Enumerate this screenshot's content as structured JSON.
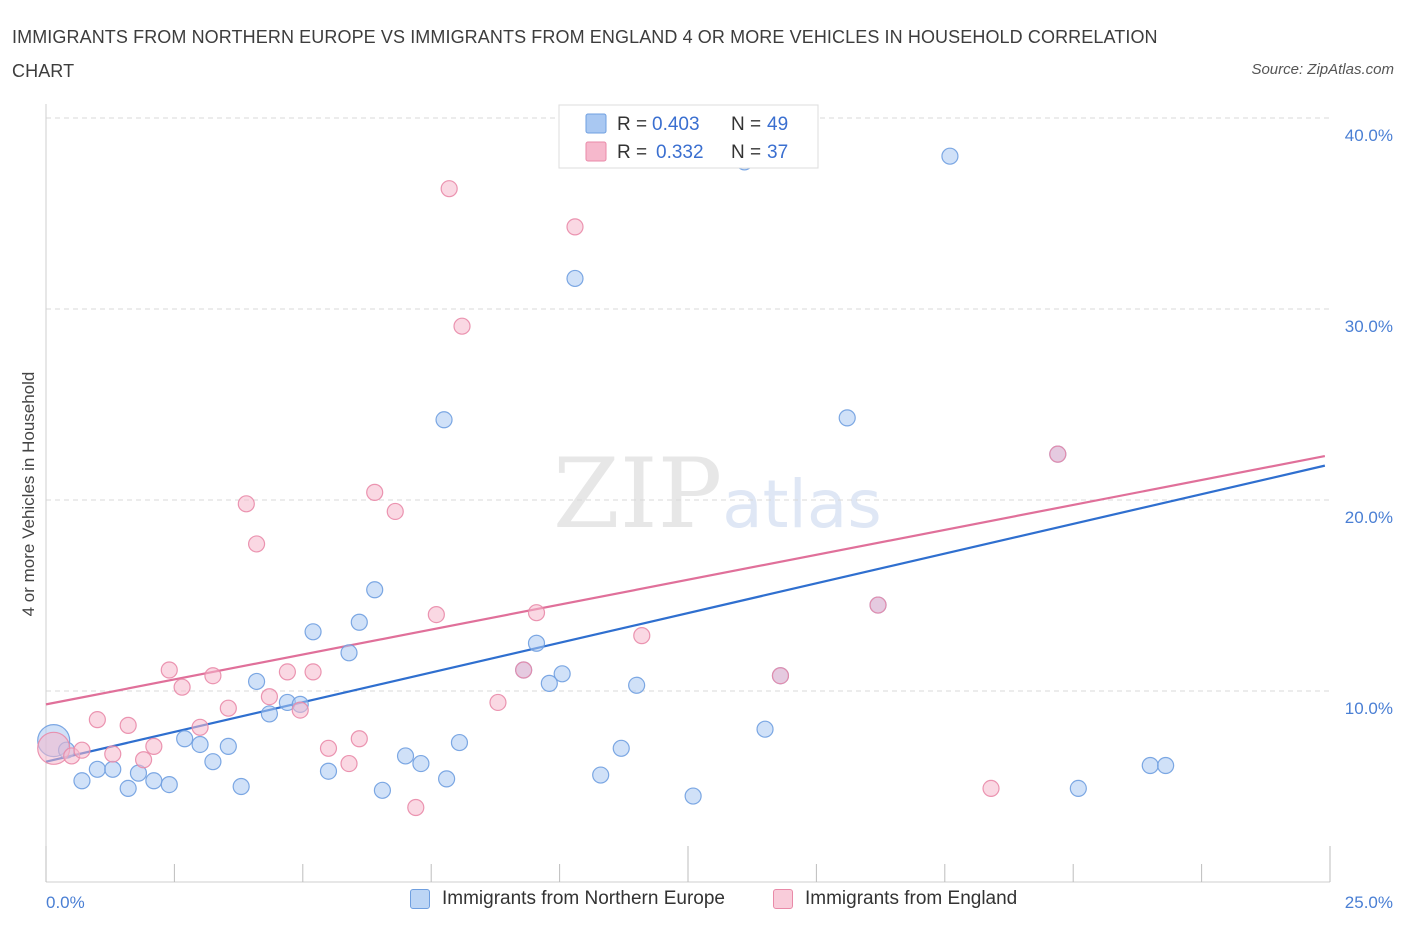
{
  "title": "IMMIGRANTS FROM NORTHERN EUROPE VS IMMIGRANTS FROM ENGLAND 4 OR MORE VEHICLES IN HOUSEHOLD CORRELATION CHART",
  "source": "Source: ZipAtlas.com",
  "watermark": {
    "zip": "ZIP",
    "atlas": "atlas"
  },
  "legend_top": [
    {
      "r_label": "R =",
      "r_value": "0.403",
      "n_label": "N =",
      "n_value": "49"
    },
    {
      "r_label": "R =",
      "r_value": "0.332",
      "n_label": "N =",
      "n_value": "37"
    }
  ],
  "legend_bottom": [
    "Immigrants from Northern Europe",
    "Immigrants from England"
  ],
  "colors": {
    "blue_fill": "#a9c8f2",
    "blue_stroke": "#6f9fe0",
    "blue_line": "#2f6fcf",
    "pink_fill": "#f6b8cc",
    "pink_stroke": "#e98aa8",
    "pink_line": "#e0709a",
    "tick_text": "#4a7fd4",
    "grid": "#d9d9d9"
  },
  "chart_data": {
    "type": "scatter",
    "title": "IMMIGRANTS FROM NORTHERN EUROPE VS IMMIGRANTS FROM ENGLAND 4 OR MORE VEHICLES IN HOUSEHOLD CORRELATION CHART",
    "xlabel": "",
    "ylabel": "4 or more Vehicles in Household",
    "xlim": [
      0,
      25
    ],
    "ylim": [
      0,
      40
    ],
    "x_tick_labels": [
      "0.0%",
      "25.0%"
    ],
    "y_ticks": [
      10,
      20,
      30,
      40
    ],
    "y_tick_labels": [
      "10.0%",
      "20.0%",
      "30.0%",
      "40.0%"
    ],
    "grid": true,
    "legend_position": "top-center",
    "series": [
      {
        "name": "Immigrants from Northern Europe",
        "color": "#a9c8f2",
        "trend": {
          "x": [
            0,
            24.9
          ],
          "y": [
            6.3,
            21.8
          ]
        },
        "points": [
          {
            "x": 0.15,
            "y": 7.4,
            "big": true
          },
          {
            "x": 0.4,
            "y": 6.9
          },
          {
            "x": 0.7,
            "y": 5.3
          },
          {
            "x": 1.0,
            "y": 5.9
          },
          {
            "x": 1.3,
            "y": 5.9
          },
          {
            "x": 1.6,
            "y": 4.9
          },
          {
            "x": 1.8,
            "y": 5.7
          },
          {
            "x": 2.1,
            "y": 5.3
          },
          {
            "x": 2.4,
            "y": 5.1
          },
          {
            "x": 2.7,
            "y": 7.5
          },
          {
            "x": 3.0,
            "y": 7.2
          },
          {
            "x": 3.25,
            "y": 6.3
          },
          {
            "x": 3.55,
            "y": 7.1
          },
          {
            "x": 3.8,
            "y": 5.0
          },
          {
            "x": 4.1,
            "y": 10.5
          },
          {
            "x": 4.35,
            "y": 8.8
          },
          {
            "x": 4.7,
            "y": 9.4
          },
          {
            "x": 4.95,
            "y": 9.3
          },
          {
            "x": 5.2,
            "y": 13.1
          },
          {
            "x": 5.5,
            "y": 5.8
          },
          {
            "x": 5.9,
            "y": 12.0
          },
          {
            "x": 6.1,
            "y": 13.6
          },
          {
            "x": 6.4,
            "y": 15.3
          },
          {
            "x": 6.55,
            "y": 4.8
          },
          {
            "x": 7.0,
            "y": 6.6
          },
          {
            "x": 7.3,
            "y": 6.2
          },
          {
            "x": 7.75,
            "y": 24.2
          },
          {
            "x": 7.8,
            "y": 5.4
          },
          {
            "x": 8.05,
            "y": 7.3
          },
          {
            "x": 9.3,
            "y": 11.1
          },
          {
            "x": 9.55,
            "y": 12.5
          },
          {
            "x": 9.8,
            "y": 10.4
          },
          {
            "x": 10.05,
            "y": 10.9
          },
          {
            "x": 10.3,
            "y": 31.6
          },
          {
            "x": 10.8,
            "y": 5.6
          },
          {
            "x": 11.2,
            "y": 7.0
          },
          {
            "x": 11.5,
            "y": 10.3
          },
          {
            "x": 12.2,
            "y": 40.0
          },
          {
            "x": 12.6,
            "y": 4.5
          },
          {
            "x": 13.6,
            "y": 37.7
          },
          {
            "x": 14.0,
            "y": 8.0
          },
          {
            "x": 14.3,
            "y": 10.8
          },
          {
            "x": 15.6,
            "y": 24.3
          },
          {
            "x": 16.2,
            "y": 14.5
          },
          {
            "x": 17.6,
            "y": 38.0
          },
          {
            "x": 19.7,
            "y": 22.4
          },
          {
            "x": 20.1,
            "y": 4.9
          },
          {
            "x": 21.5,
            "y": 6.1
          },
          {
            "x": 21.8,
            "y": 6.1
          }
        ]
      },
      {
        "name": "Immigrants from England",
        "color": "#f6b8cc",
        "trend": {
          "x": [
            0,
            24.9
          ],
          "y": [
            9.3,
            22.3
          ]
        },
        "points": [
          {
            "x": 0.15,
            "y": 7.0,
            "big": true
          },
          {
            "x": 0.5,
            "y": 6.6
          },
          {
            "x": 0.7,
            "y": 6.9
          },
          {
            "x": 1.0,
            "y": 8.5
          },
          {
            "x": 1.3,
            "y": 6.7
          },
          {
            "x": 1.6,
            "y": 8.2
          },
          {
            "x": 1.9,
            "y": 6.4
          },
          {
            "x": 2.1,
            "y": 7.1
          },
          {
            "x": 2.4,
            "y": 11.1
          },
          {
            "x": 2.65,
            "y": 10.2
          },
          {
            "x": 3.0,
            "y": 8.1
          },
          {
            "x": 3.25,
            "y": 10.8
          },
          {
            "x": 3.55,
            "y": 9.1
          },
          {
            "x": 3.9,
            "y": 19.8
          },
          {
            "x": 4.1,
            "y": 17.7
          },
          {
            "x": 4.35,
            "y": 9.7
          },
          {
            "x": 4.7,
            "y": 11.0
          },
          {
            "x": 4.95,
            "y": 9.0
          },
          {
            "x": 5.2,
            "y": 11.0
          },
          {
            "x": 5.5,
            "y": 7.0
          },
          {
            "x": 5.9,
            "y": 6.2
          },
          {
            "x": 6.1,
            "y": 7.5
          },
          {
            "x": 6.4,
            "y": 20.4
          },
          {
            "x": 6.8,
            "y": 19.4
          },
          {
            "x": 7.2,
            "y": 3.9
          },
          {
            "x": 7.6,
            "y": 14.0
          },
          {
            "x": 7.85,
            "y": 36.3
          },
          {
            "x": 8.1,
            "y": 29.1
          },
          {
            "x": 8.8,
            "y": 9.4
          },
          {
            "x": 9.3,
            "y": 11.1
          },
          {
            "x": 9.55,
            "y": 14.1
          },
          {
            "x": 10.3,
            "y": 34.3
          },
          {
            "x": 11.6,
            "y": 12.9
          },
          {
            "x": 14.3,
            "y": 10.8
          },
          {
            "x": 16.2,
            "y": 14.5
          },
          {
            "x": 18.4,
            "y": 4.9
          },
          {
            "x": 19.7,
            "y": 22.4
          }
        ]
      }
    ]
  }
}
